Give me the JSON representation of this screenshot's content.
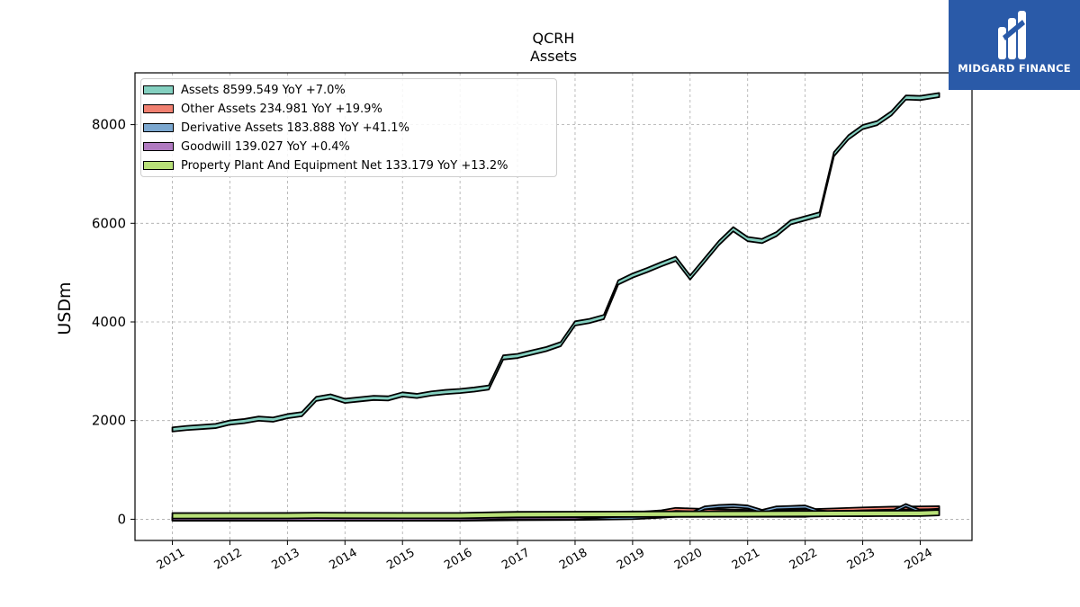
{
  "brand": {
    "name": "MIDGARD FINANCE",
    "color": "#2a5aa8"
  },
  "chart_data": {
    "type": "area",
    "title": "QCRH",
    "subtitle": "Assets",
    "ylabel": "USDm",
    "xlabel": "",
    "xlim": [
      2010.35,
      2024.9
    ],
    "ylim": [
      -430,
      9050
    ],
    "x_ticks": [
      "2011",
      "2012",
      "2013",
      "2014",
      "2015",
      "2016",
      "2017",
      "2018",
      "2019",
      "2020",
      "2021",
      "2022",
      "2023",
      "2024"
    ],
    "y_ticks": [
      0,
      2000,
      4000,
      6000,
      8000
    ],
    "grid": true,
    "legend_position": "top-left",
    "series": [
      {
        "name": "Assets",
        "legend": "Assets  8599.549 YoY +7.0%",
        "color": "#84d0c0",
        "points": [
          [
            2011.0,
            1820
          ],
          [
            2011.25,
            1850
          ],
          [
            2011.5,
            1870
          ],
          [
            2011.75,
            1890
          ],
          [
            2012.0,
            1960
          ],
          [
            2012.25,
            1990
          ],
          [
            2012.5,
            2040
          ],
          [
            2012.75,
            2020
          ],
          [
            2013.0,
            2090
          ],
          [
            2013.25,
            2130
          ],
          [
            2013.5,
            2440
          ],
          [
            2013.75,
            2490
          ],
          [
            2014.0,
            2400
          ],
          [
            2014.25,
            2430
          ],
          [
            2014.5,
            2460
          ],
          [
            2014.75,
            2450
          ],
          [
            2015.0,
            2530
          ],
          [
            2015.25,
            2500
          ],
          [
            2015.5,
            2550
          ],
          [
            2015.75,
            2580
          ],
          [
            2016.0,
            2600
          ],
          [
            2016.25,
            2630
          ],
          [
            2016.5,
            2670
          ],
          [
            2016.75,
            3280
          ],
          [
            2017.0,
            3310
          ],
          [
            2017.25,
            3380
          ],
          [
            2017.5,
            3450
          ],
          [
            2017.75,
            3550
          ],
          [
            2018.0,
            3970
          ],
          [
            2018.25,
            4020
          ],
          [
            2018.5,
            4100
          ],
          [
            2018.75,
            4800
          ],
          [
            2019.0,
            4940
          ],
          [
            2019.25,
            5050
          ],
          [
            2019.5,
            5170
          ],
          [
            2019.75,
            5280
          ],
          [
            2020.0,
            4900
          ],
          [
            2020.25,
            5250
          ],
          [
            2020.5,
            5600
          ],
          [
            2020.75,
            5880
          ],
          [
            2021.0,
            5680
          ],
          [
            2021.25,
            5640
          ],
          [
            2021.5,
            5780
          ],
          [
            2021.75,
            6020
          ],
          [
            2022.0,
            6100
          ],
          [
            2022.25,
            6180
          ],
          [
            2022.5,
            7400
          ],
          [
            2022.75,
            7740
          ],
          [
            2023.0,
            7950
          ],
          [
            2023.25,
            8030
          ],
          [
            2023.5,
            8230
          ],
          [
            2023.75,
            8550
          ],
          [
            2024.0,
            8540
          ],
          [
            2024.33,
            8600
          ]
        ]
      },
      {
        "name": "Other Assets",
        "legend": "Other Assets  234.981 YoY +19.9%",
        "color": "#f08070",
        "points": [
          [
            2011.0,
            15
          ],
          [
            2012.0,
            20
          ],
          [
            2013.0,
            25
          ],
          [
            2014.0,
            30
          ],
          [
            2015.0,
            35
          ],
          [
            2016.0,
            40
          ],
          [
            2017.0,
            60
          ],
          [
            2018.0,
            70
          ],
          [
            2019.0,
            110
          ],
          [
            2019.5,
            150
          ],
          [
            2019.75,
            200
          ],
          [
            2020.0,
            190
          ],
          [
            2020.5,
            170
          ],
          [
            2021.0,
            160
          ],
          [
            2021.5,
            165
          ],
          [
            2022.0,
            170
          ],
          [
            2022.5,
            190
          ],
          [
            2023.0,
            210
          ],
          [
            2023.5,
            225
          ],
          [
            2024.0,
            230
          ],
          [
            2024.33,
            235
          ]
        ]
      },
      {
        "name": "Derivative Assets",
        "legend": "Derivative Assets  183.888 YoY +41.1%",
        "color": "#7ba7cf",
        "points": [
          [
            2011.0,
            0
          ],
          [
            2012.0,
            0
          ],
          [
            2013.0,
            0
          ],
          [
            2014.0,
            0
          ],
          [
            2015.0,
            0
          ],
          [
            2016.0,
            0
          ],
          [
            2017.0,
            10
          ],
          [
            2018.0,
            15
          ],
          [
            2019.0,
            30
          ],
          [
            2019.5,
            60
          ],
          [
            2020.0,
            100
          ],
          [
            2020.25,
            230
          ],
          [
            2020.5,
            260
          ],
          [
            2020.75,
            270
          ],
          [
            2021.0,
            250
          ],
          [
            2021.25,
            160
          ],
          [
            2021.5,
            230
          ],
          [
            2021.75,
            240
          ],
          [
            2022.0,
            250
          ],
          [
            2022.25,
            150
          ],
          [
            2022.5,
            120
          ],
          [
            2022.75,
            100
          ],
          [
            2023.0,
            90
          ],
          [
            2023.25,
            100
          ],
          [
            2023.5,
            140
          ],
          [
            2023.75,
            280
          ],
          [
            2024.0,
            160
          ],
          [
            2024.33,
            184
          ]
        ]
      },
      {
        "name": "Goodwill",
        "legend": "Goodwill  139.027 YoY +0.4%",
        "color": "#b07ac0",
        "points": [
          [
            2011.0,
            3
          ],
          [
            2012.0,
            3
          ],
          [
            2013.0,
            3
          ],
          [
            2014.0,
            3
          ],
          [
            2015.0,
            3
          ],
          [
            2016.0,
            3
          ],
          [
            2016.75,
            28
          ],
          [
            2017.0,
            28
          ],
          [
            2018.0,
            28
          ],
          [
            2018.75,
            78
          ],
          [
            2019.0,
            78
          ],
          [
            2020.0,
            78
          ],
          [
            2021.0,
            78
          ],
          [
            2022.0,
            78
          ],
          [
            2022.5,
            139
          ],
          [
            2023.0,
            139
          ],
          [
            2024.0,
            139
          ],
          [
            2024.33,
            139
          ]
        ]
      },
      {
        "name": "Property Plant And Equipment Net",
        "legend": "Property Plant And Equipment Net  133.179 YoY +13.2%",
        "color": "#b8e078",
        "points": [
          [
            2011.0,
            70
          ],
          [
            2012.0,
            71
          ],
          [
            2013.0,
            72
          ],
          [
            2013.5,
            78
          ],
          [
            2014.0,
            75
          ],
          [
            2015.0,
            74
          ],
          [
            2016.0,
            73
          ],
          [
            2016.75,
            90
          ],
          [
            2017.0,
            95
          ],
          [
            2018.0,
            98
          ],
          [
            2018.75,
            100
          ],
          [
            2019.0,
            102
          ],
          [
            2020.0,
            105
          ],
          [
            2021.0,
            108
          ],
          [
            2022.0,
            112
          ],
          [
            2022.5,
            115
          ],
          [
            2023.0,
            117
          ],
          [
            2024.0,
            120
          ],
          [
            2024.33,
            133
          ]
        ]
      }
    ]
  }
}
